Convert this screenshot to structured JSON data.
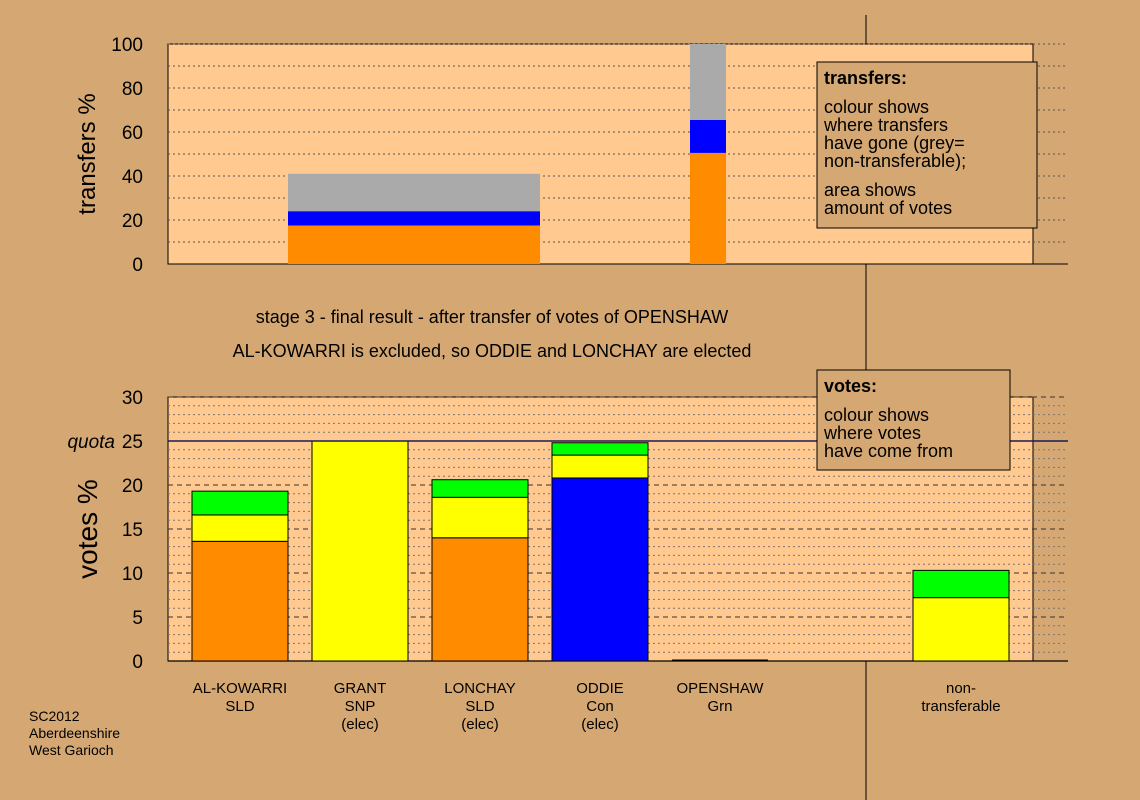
{
  "colors": {
    "background": "#d5a873",
    "plot_bg": "#ffc990",
    "orange": "#ff8c00",
    "yellow": "#ffff00",
    "green": "#00ff00",
    "blue": "#0000ff",
    "grey": "#aaaaaa",
    "box_bg": "#d5a873"
  },
  "chart_data": [
    {
      "type": "bar",
      "ylabel": "transfers %",
      "ylim": [
        0,
        100
      ],
      "yticks": [
        "0",
        "20",
        "40",
        "60",
        "80",
        "100"
      ],
      "grid": true,
      "bars": [
        {
          "x_from": 1,
          "x_to": 3.1,
          "segments": [
            {
              "color": "orange",
              "value": 17.5
            },
            {
              "color": "blue",
              "value": 6.5
            },
            {
              "color": "grey",
              "value": 17
            }
          ]
        },
        {
          "x_from": 4.35,
          "x_to": 4.65,
          "segments": [
            {
              "color": "orange",
              "value": 50.5
            },
            {
              "color": "blue",
              "value": 15
            },
            {
              "color": "grey",
              "value": 34.5
            }
          ]
        }
      ],
      "legend_box": {
        "title": "transfers:",
        "lines_a": [
          "colour shows",
          "where transfers",
          "have gone (grey=",
          "non-transferable);"
        ],
        "lines_b": [
          "area shows",
          "amount of votes"
        ]
      }
    },
    {
      "type": "bar",
      "ylabel": "votes %",
      "ylim": [
        0,
        30
      ],
      "yticks": [
        "0",
        "5",
        "10",
        "15",
        "20",
        "25",
        "30"
      ],
      "quota": {
        "label": "quota",
        "value": 25
      },
      "grid": true,
      "categories": [
        {
          "lines": [
            "AL-KOWARRI",
            "SLD"
          ],
          "segments": [
            {
              "color": "orange",
              "value": 13.6
            },
            {
              "color": "yellow",
              "value": 3.0
            },
            {
              "color": "green",
              "value": 2.7
            }
          ]
        },
        {
          "lines": [
            "GRANT",
            "SNP",
            "(elec)"
          ],
          "segments": [
            {
              "color": "yellow",
              "value": 25.0
            }
          ]
        },
        {
          "lines": [
            "LONCHAY",
            "SLD",
            "(elec)"
          ],
          "segments": [
            {
              "color": "orange",
              "value": 14.0
            },
            {
              "color": "yellow",
              "value": 4.6
            },
            {
              "color": "green",
              "value": 2.0
            }
          ]
        },
        {
          "lines": [
            "ODDIE",
            "Con",
            "(elec)"
          ],
          "segments": [
            {
              "color": "blue",
              "value": 20.8
            },
            {
              "color": "yellow",
              "value": 2.6
            },
            {
              "color": "green",
              "value": 1.4
            }
          ]
        },
        {
          "lines": [
            "OPENSHAW",
            "Grn"
          ],
          "segments": []
        },
        {
          "lines": [
            "non-",
            "transferable"
          ],
          "segments": [
            {
              "color": "yellow",
              "value": 7.2
            },
            {
              "color": "green",
              "value": 3.1
            }
          ]
        }
      ],
      "legend_box": {
        "title": "votes:",
        "lines": [
          "colour shows",
          "where votes",
          "have come from"
        ]
      }
    }
  ],
  "subtitle_line1": "stage 3 - final result - after transfer of votes of OPENSHAW",
  "subtitle_line2": "AL-KOWARRI is excluded, so ODDIE and LONCHAY are elected",
  "footer": [
    "SC2012",
    "Aberdeenshire",
    "West Garioch"
  ]
}
